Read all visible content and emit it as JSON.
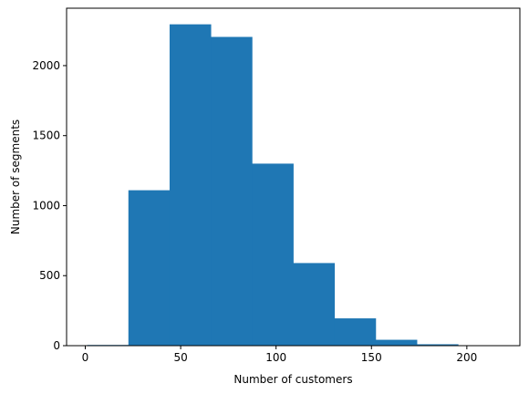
{
  "chart_data": {
    "type": "bar",
    "title": "",
    "xlabel": "Number of customers",
    "ylabel": "Number of segments",
    "bin_edges": [
      1.0,
      22.6,
      44.2,
      65.8,
      87.4,
      109.0,
      130.6,
      152.2,
      173.8,
      195.4,
      217.0
    ],
    "values": [
      5,
      1110,
      2295,
      2205,
      1300,
      590,
      195,
      42,
      10,
      2
    ],
    "xlim": [
      -9.8,
      227.8
    ],
    "ylim": [
      0,
      2410
    ],
    "x_ticks": [
      0,
      50,
      100,
      150,
      200
    ],
    "y_ticks": [
      0,
      500,
      1000,
      1500,
      2000
    ],
    "grid": false,
    "bar_color": "#1f77b4"
  }
}
